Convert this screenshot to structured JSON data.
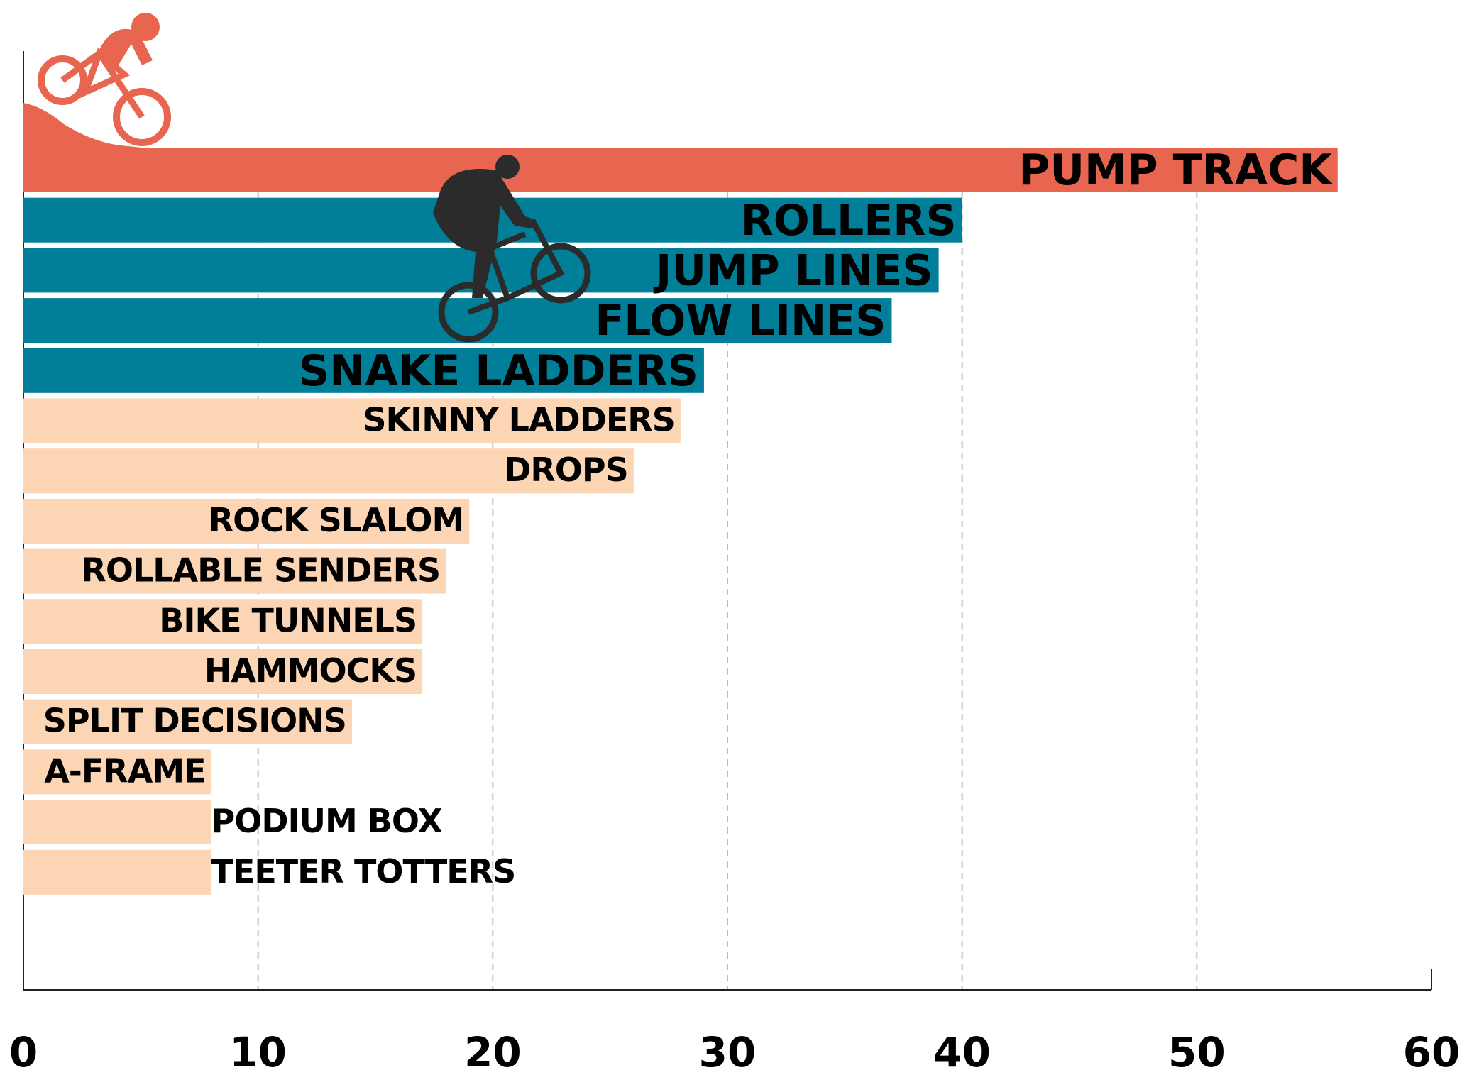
{
  "chart_data": {
    "type": "bar",
    "orientation": "horizontal",
    "categories": [
      "PUMP TRACK",
      "ROLLERS",
      "JUMP LINES",
      "FLOW LINES",
      "SNAKE LADDERS",
      "SKINNY LADDERS",
      "DROPS",
      "ROCK SLALOM",
      "ROLLABLE SENDERS",
      "BIKE TUNNELS",
      "HAMMOCKS",
      "SPLIT DECISIONS",
      "A-FRAME",
      "PODIUM BOX",
      "TEETER TOTTERS"
    ],
    "values": [
      56,
      40,
      39,
      37,
      29,
      28,
      26,
      19,
      18,
      17,
      17,
      14,
      8,
      8,
      8
    ],
    "colors": [
      "#e8654f",
      "#017f99",
      "#017f99",
      "#017f99",
      "#017f99",
      "#fcd5b5",
      "#fcd5b5",
      "#fcd5b5",
      "#fcd5b5",
      "#fcd5b5",
      "#fcd5b5",
      "#fcd5b5",
      "#fcd5b5",
      "#fcd5b5",
      "#fcd5b5"
    ],
    "xlim": [
      0,
      60
    ],
    "xticks": [
      0,
      10,
      20,
      30,
      40,
      50,
      60
    ],
    "grid": true
  }
}
